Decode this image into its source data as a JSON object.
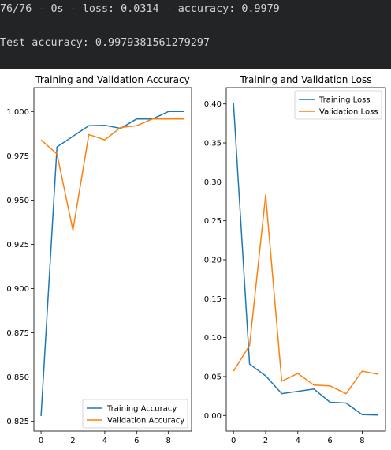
{
  "terminal": {
    "line1": "76/76 - 0s - loss: 0.0314 - accuracy: 0.9979",
    "line2": "Test accuracy: 0.9979381561279297"
  },
  "colors": {
    "training": "#1f77b4",
    "validation": "#ff7f0e"
  },
  "chart_data": [
    {
      "type": "line",
      "title": "Training and Validation Accuracy",
      "xlabel": "",
      "ylabel": "",
      "x": [
        0,
        1,
        2,
        3,
        4,
        5,
        6,
        7,
        8,
        9
      ],
      "xticks": [
        0,
        2,
        4,
        6,
        8
      ],
      "yticks": [
        0.825,
        0.85,
        0.875,
        0.9,
        0.925,
        0.95,
        0.975,
        1.0
      ],
      "ytick_labels": [
        "0.825",
        "0.850",
        "0.875",
        "0.900",
        "0.925",
        "0.950",
        "0.975",
        "1.000"
      ],
      "xlim": [
        -0.45,
        9.45
      ],
      "ylim": [
        0.8195,
        1.0135
      ],
      "legend_position": "lower right",
      "grid": false,
      "series": [
        {
          "name": "Training Accuracy",
          "color": "#1f77b4",
          "values": [
            0.828,
            0.98,
            0.986,
            0.992,
            0.9922,
            0.9905,
            0.9958,
            0.9958,
            1.0,
            1.0
          ]
        },
        {
          "name": "Validation Accuracy",
          "color": "#ff7f0e",
          "values": [
            0.984,
            0.976,
            0.933,
            0.987,
            0.984,
            0.991,
            0.992,
            0.9958,
            0.9958,
            0.9958
          ]
        }
      ]
    },
    {
      "type": "line",
      "title": "Training and Validation Loss",
      "xlabel": "",
      "ylabel": "",
      "x": [
        0,
        1,
        2,
        3,
        4,
        5,
        6,
        7,
        8,
        9
      ],
      "xticks": [
        0,
        2,
        4,
        6,
        8
      ],
      "yticks": [
        0.0,
        0.05,
        0.1,
        0.15,
        0.2,
        0.25,
        0.3,
        0.35,
        0.4
      ],
      "ytick_labels": [
        "0.00",
        "0.05",
        "0.10",
        "0.15",
        "0.20",
        "0.25",
        "0.30",
        "0.35",
        "0.40"
      ],
      "xlim": [
        -0.45,
        9.45
      ],
      "ylim": [
        -0.02,
        0.421
      ],
      "legend_position": "upper right",
      "grid": false,
      "series": [
        {
          "name": "Training Loss",
          "color": "#1f77b4",
          "values": [
            0.401,
            0.066,
            0.051,
            0.028,
            0.031,
            0.034,
            0.017,
            0.016,
            0.001,
            0.0005
          ]
        },
        {
          "name": "Validation Loss",
          "color": "#ff7f0e",
          "values": [
            0.057,
            0.09,
            0.283,
            0.044,
            0.054,
            0.039,
            0.038,
            0.028,
            0.057,
            0.053
          ]
        }
      ]
    }
  ]
}
